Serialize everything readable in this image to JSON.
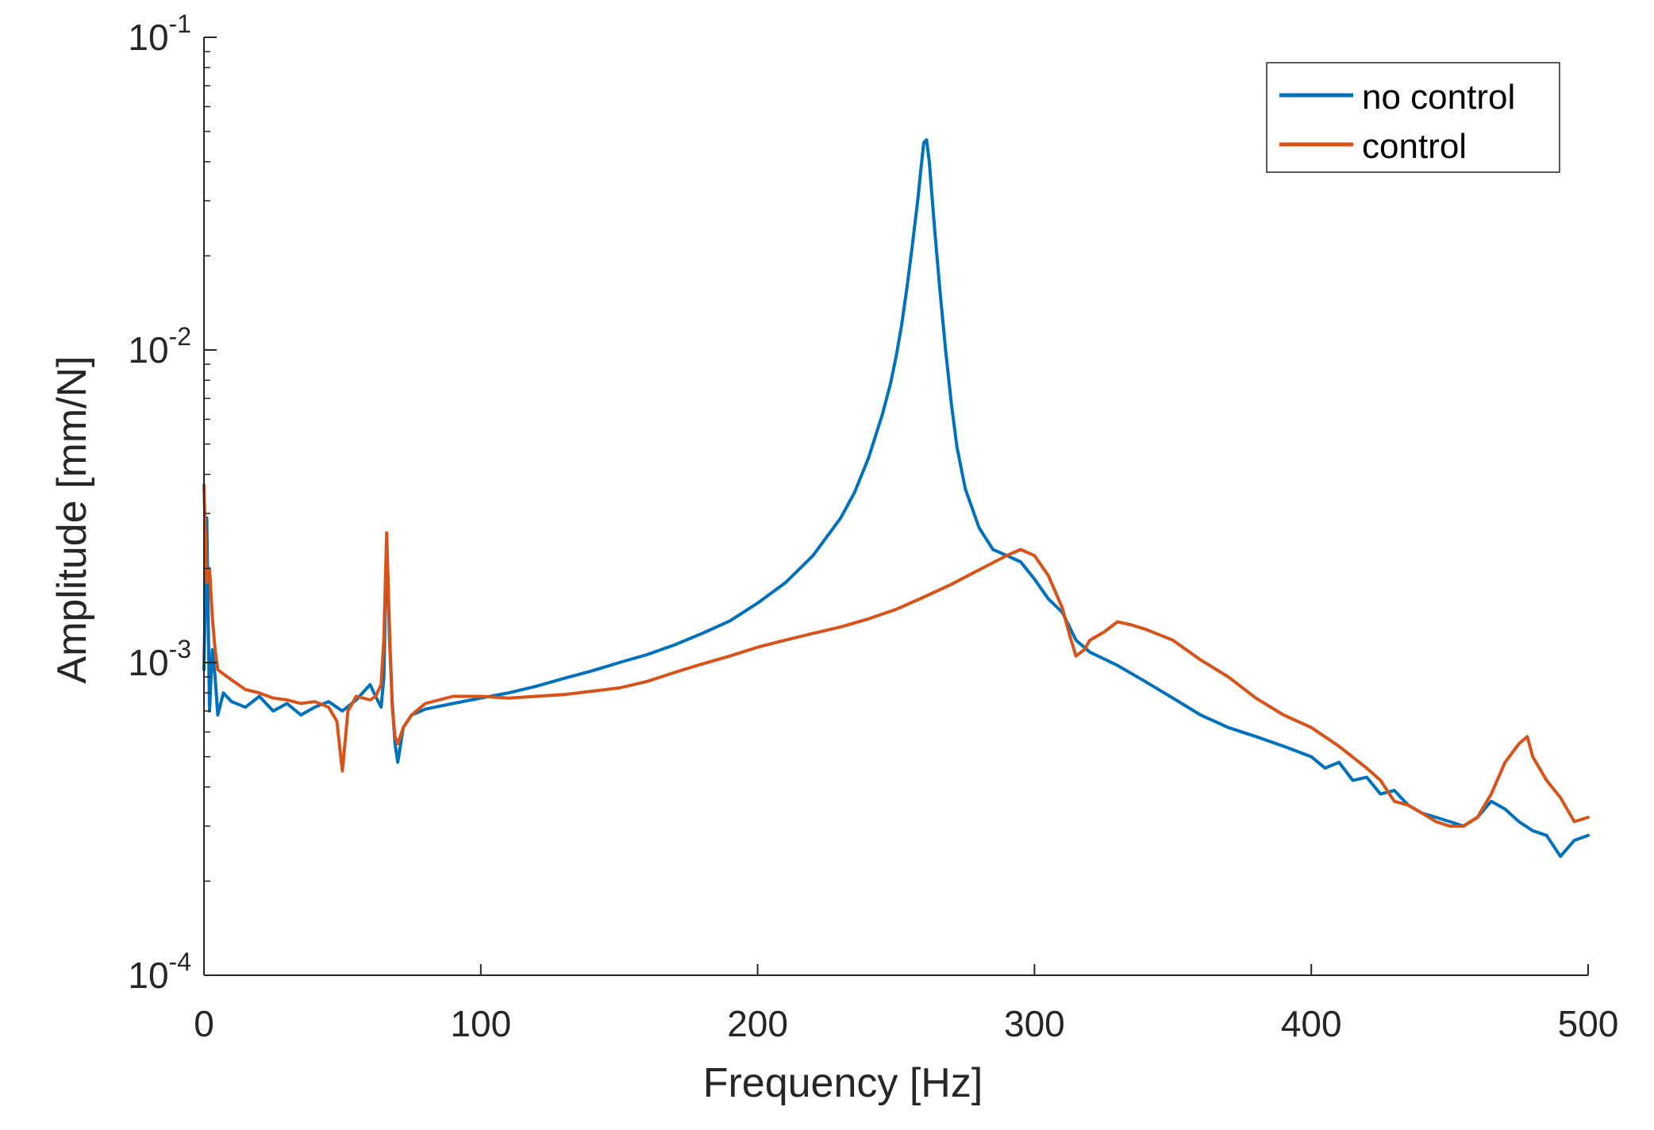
{
  "chart_data": {
    "type": "line",
    "title": "",
    "xlabel": "Frequency [Hz]",
    "ylabel": "Amplitude [mm/N]",
    "xlim": [
      0,
      500
    ],
    "ylim": [
      0.0001,
      0.1
    ],
    "yscale": "log",
    "grid": false,
    "legend_position": "top-right",
    "x_ticks": [
      0,
      100,
      200,
      300,
      400,
      500
    ],
    "x_tick_labels": [
      "0",
      "100",
      "200",
      "300",
      "400",
      "500"
    ],
    "y_ticks": [
      {
        "value": 0.1,
        "base": "10",
        "exp": "-1"
      },
      {
        "value": 0.01,
        "base": "10",
        "exp": "-2"
      },
      {
        "value": 0.001,
        "base": "10",
        "exp": "-3"
      },
      {
        "value": 0.0001,
        "base": "10",
        "exp": "-4"
      }
    ],
    "series": [
      {
        "name": "no control",
        "color": "#0072BD",
        "x": [
          0,
          1,
          2,
          3,
          4,
          5,
          7,
          10,
          15,
          20,
          25,
          30,
          35,
          40,
          45,
          50,
          55,
          60,
          62,
          64,
          65,
          66,
          67,
          68,
          69,
          70,
          72,
          75,
          80,
          90,
          100,
          110,
          120,
          130,
          140,
          150,
          160,
          170,
          180,
          190,
          200,
          210,
          220,
          230,
          235,
          240,
          245,
          248,
          250,
          252,
          254,
          256,
          258,
          259,
          260,
          261,
          262,
          263,
          264,
          266,
          268,
          270,
          272,
          275,
          280,
          285,
          290,
          295,
          300,
          305,
          310,
          315,
          320,
          330,
          340,
          350,
          360,
          370,
          380,
          390,
          400,
          405,
          410,
          415,
          420,
          425,
          430,
          435,
          440,
          445,
          450,
          455,
          460,
          465,
          470,
          475,
          480,
          485,
          490,
          495,
          500
        ],
        "y": [
          0.00095,
          0.0029,
          0.0007,
          0.0011,
          0.0009,
          0.00068,
          0.0008,
          0.00075,
          0.00072,
          0.00078,
          0.0007,
          0.00074,
          0.00068,
          0.00072,
          0.00075,
          0.0007,
          0.00076,
          0.00085,
          0.00078,
          0.00072,
          0.0009,
          0.0026,
          0.0012,
          0.00075,
          0.00055,
          0.00048,
          0.00062,
          0.00068,
          0.00071,
          0.00074,
          0.00077,
          0.0008,
          0.00084,
          0.00089,
          0.00094,
          0.001,
          0.00106,
          0.00114,
          0.00124,
          0.00136,
          0.00155,
          0.0018,
          0.0022,
          0.0029,
          0.0035,
          0.0045,
          0.0062,
          0.0078,
          0.0095,
          0.012,
          0.016,
          0.022,
          0.031,
          0.038,
          0.046,
          0.047,
          0.04,
          0.031,
          0.024,
          0.015,
          0.0098,
          0.0067,
          0.0049,
          0.0036,
          0.0027,
          0.0023,
          0.0022,
          0.0021,
          0.00185,
          0.0016,
          0.00145,
          0.00118,
          0.00108,
          0.00098,
          0.00087,
          0.00077,
          0.00068,
          0.00062,
          0.00058,
          0.00054,
          0.0005,
          0.00046,
          0.00048,
          0.00042,
          0.00043,
          0.00038,
          0.00039,
          0.00035,
          0.00033,
          0.00032,
          0.00031,
          0.0003,
          0.00032,
          0.00036,
          0.00034,
          0.00031,
          0.00029,
          0.00028,
          0.00024,
          0.00027,
          0.00028
        ]
      },
      {
        "name": "control",
        "color": "#D95319",
        "x": [
          0,
          1,
          2,
          3,
          4,
          5,
          7,
          10,
          15,
          20,
          25,
          30,
          35,
          40,
          45,
          48,
          50,
          52,
          55,
          60,
          62,
          64,
          65,
          66,
          67,
          68,
          69,
          70,
          72,
          75,
          80,
          90,
          100,
          110,
          120,
          130,
          140,
          150,
          160,
          170,
          180,
          190,
          200,
          210,
          220,
          230,
          240,
          250,
          260,
          270,
          280,
          290,
          295,
          300,
          305,
          310,
          313,
          315,
          318,
          320,
          325,
          330,
          335,
          340,
          350,
          360,
          370,
          380,
          390,
          400,
          410,
          420,
          425,
          430,
          435,
          440,
          445,
          450,
          455,
          460,
          465,
          470,
          475,
          478,
          480,
          485,
          490,
          495,
          500
        ],
        "y": [
          0.0037,
          0.0018,
          0.002,
          0.0014,
          0.0011,
          0.00095,
          0.00092,
          0.00088,
          0.00082,
          0.0008,
          0.00077,
          0.00076,
          0.00074,
          0.00075,
          0.00072,
          0.00065,
          0.00045,
          0.0007,
          0.00078,
          0.00076,
          0.00078,
          0.00085,
          0.0012,
          0.0026,
          0.0013,
          0.00072,
          0.00058,
          0.00055,
          0.00062,
          0.00068,
          0.00074,
          0.00078,
          0.00078,
          0.00077,
          0.00078,
          0.00079,
          0.00081,
          0.00083,
          0.00087,
          0.00093,
          0.00099,
          0.00105,
          0.00112,
          0.00118,
          0.00124,
          0.0013,
          0.00138,
          0.00148,
          0.00162,
          0.00178,
          0.00198,
          0.0022,
          0.0023,
          0.0022,
          0.0019,
          0.0015,
          0.0012,
          0.00105,
          0.0011,
          0.00118,
          0.00125,
          0.00135,
          0.00132,
          0.00128,
          0.00118,
          0.00102,
          0.0009,
          0.00077,
          0.00068,
          0.00062,
          0.00054,
          0.00046,
          0.00042,
          0.00036,
          0.00035,
          0.00033,
          0.00031,
          0.0003,
          0.0003,
          0.00032,
          0.00038,
          0.00048,
          0.00055,
          0.00058,
          0.0005,
          0.00042,
          0.00037,
          0.00031,
          0.00032
        ]
      }
    ]
  }
}
